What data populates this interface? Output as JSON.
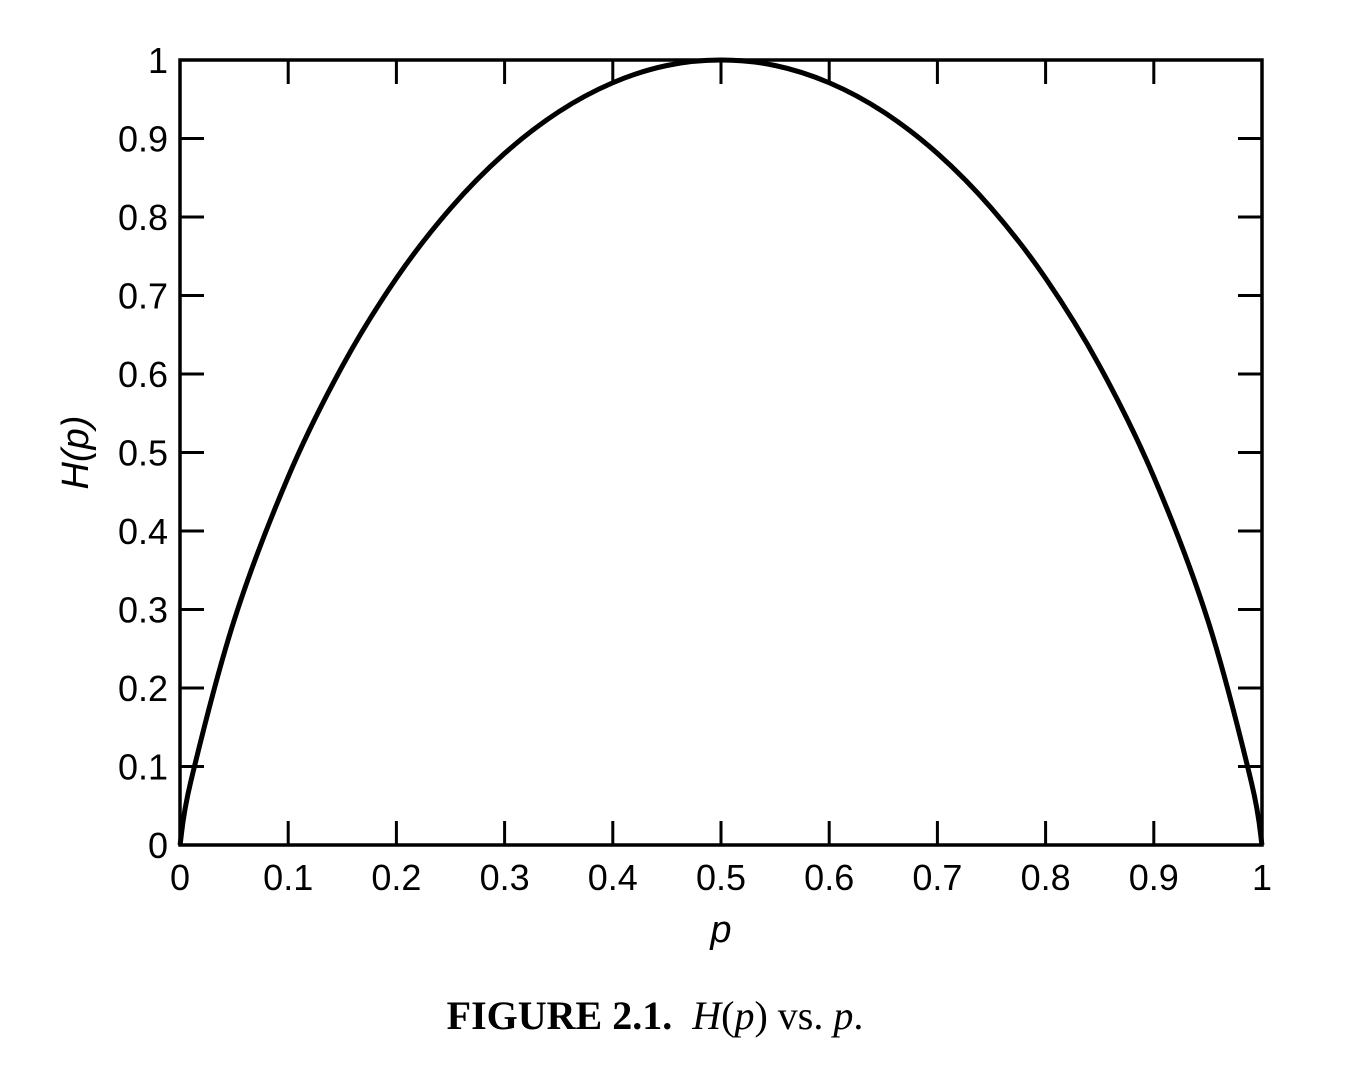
{
  "chart_data": {
    "type": "line",
    "title": "",
    "xlabel": "p",
    "ylabel": "H(p)",
    "xlim": [
      0,
      1
    ],
    "ylim": [
      0,
      1
    ],
    "grid": false,
    "x_ticks": [
      "0",
      "0.1",
      "0.2",
      "0.3",
      "0.4",
      "0.5",
      "0.6",
      "0.7",
      "0.8",
      "0.9",
      "1"
    ],
    "y_ticks": [
      "0",
      "0.1",
      "0.2",
      "0.3",
      "0.4",
      "0.5",
      "0.6",
      "0.7",
      "0.8",
      "0.9",
      "1"
    ],
    "series": [
      {
        "x": [
          0,
          0.01,
          0.05,
          0.1,
          0.15,
          0.2,
          0.25,
          0.3,
          0.35,
          0.4,
          0.45,
          0.5,
          0.55,
          0.6,
          0.65,
          0.7,
          0.75,
          0.8,
          0.85,
          0.9,
          0.95,
          0.99,
          1
        ],
        "y": [
          0,
          0.081,
          0.286,
          0.469,
          0.61,
          0.722,
          0.811,
          0.881,
          0.934,
          0.971,
          0.993,
          1,
          0.993,
          0.971,
          0.934,
          0.881,
          0.811,
          0.722,
          0.61,
          0.469,
          0.286,
          0.081,
          0
        ]
      }
    ],
    "colors": {
      "line": "#000000",
      "axes": "#000000"
    }
  },
  "caption": {
    "label": "FIGURE 2.1.",
    "part1": "H",
    "part2": "(",
    "part3": "p",
    "part4": ")",
    "part5": " vs. ",
    "part6": "p",
    "part7": "."
  }
}
